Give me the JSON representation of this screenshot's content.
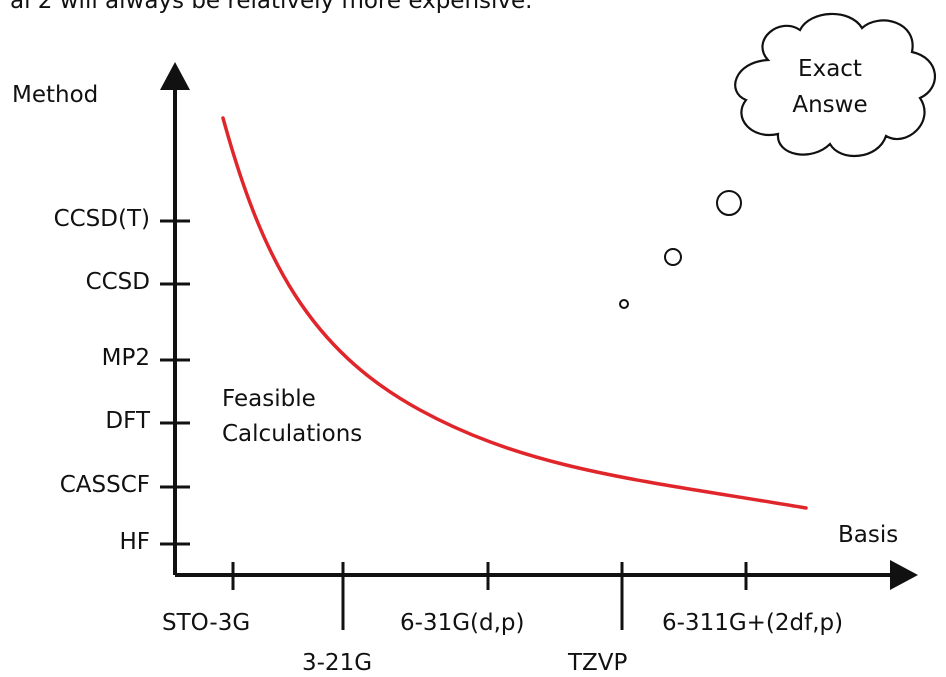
{
  "header": {
    "partial_text": "al 2 will always be relatively more expensive."
  },
  "diagram": {
    "y_axis_label": "Method",
    "x_axis_label": "Basis",
    "methods": [
      "HF",
      "CASSCF",
      "DFT",
      "MP2",
      "CCSD",
      "CCSD(T)"
    ],
    "basis_sets": [
      "STO-3G",
      "3-21G",
      "6-31G(d,p)",
      "TZVP",
      "6-311G+(2df,p)"
    ],
    "region_label": "Feasible Calculations",
    "region_label_line1": "Feasible",
    "region_label_line2": "Calculations",
    "cloud_line1": "Exact",
    "cloud_line2": "Answe",
    "colors": {
      "curve": "#e0262b",
      "axis": "#111111"
    }
  }
}
